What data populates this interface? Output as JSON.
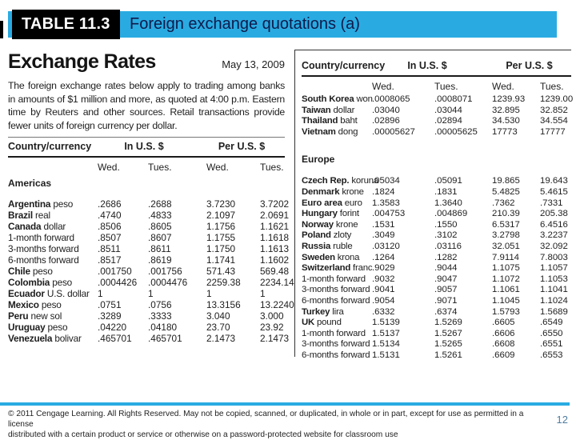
{
  "slide": {
    "table_label": "TABLE 11.3",
    "title": "Foreign exchange quotations (a)",
    "page_number": "12",
    "footer_line1": "© 2011 Cengage Learning. All Rights Reserved. May not be copied, scanned, or duplicated, in whole or in part, except for use as permitted in a license",
    "footer_line2": "distributed with a certain product or service or otherwise on a password-protected website for classroom use"
  },
  "exhibit": {
    "title": "Exchange Rates",
    "date": "May 13, 2009",
    "intro": "The foreign exchange rates below apply to trading among banks in amounts of $1 million and more, as quoted at 4:00 p.m. Eastern time by Reuters and other sources. Retail transactions provide fewer units of foreign currency per dollar."
  },
  "headers": {
    "country": "Country/currency",
    "in_usd": "In U.S. $",
    "per_usd": "Per U.S. $",
    "sub": [
      "Wed.",
      "Tues.",
      "Wed.",
      "Tues."
    ]
  },
  "left_table": {
    "sections": [
      {
        "name": "Americas",
        "rows": [
          {
            "bold": "Argentina",
            "rest": "peso",
            "values": [
              ".2686",
              ".2688",
              "3.7230",
              "3.7202"
            ]
          },
          {
            "bold": "Brazil",
            "rest": "real",
            "values": [
              ".4740",
              ".4833",
              "2.1097",
              "2.0691"
            ]
          },
          {
            "bold": "Canada",
            "rest": "dollar",
            "values": [
              ".8506",
              ".8605",
              "1.1756",
              "1.1621"
            ]
          },
          {
            "bold": "",
            "rest": "1-month forward",
            "values": [
              ".8507",
              ".8607",
              "1.1755",
              "1.1618"
            ]
          },
          {
            "bold": "",
            "rest": "3-months forward",
            "values": [
              ".8511",
              ".8611",
              "1.1750",
              "1.1613"
            ]
          },
          {
            "bold": "",
            "rest": "6-months forward",
            "values": [
              ".8517",
              ".8619",
              "1.1741",
              "1.1602"
            ]
          },
          {
            "bold": "Chile",
            "rest": "peso",
            "values": [
              ".001750",
              ".001756",
              "571.43",
              "569.48"
            ]
          },
          {
            "bold": "Colombia",
            "rest": "peso",
            "values": [
              ".0004426",
              ".0004476",
              "2259.38",
              "2234.14"
            ]
          },
          {
            "bold": "Ecuador",
            "rest": "U.S. dollar",
            "values": [
              "1",
              "1",
              "1",
              "1"
            ]
          },
          {
            "bold": "Mexico",
            "rest": "peso",
            "values": [
              ".0751",
              ".0756",
              "13.3156",
              "13.2240"
            ]
          },
          {
            "bold": "Peru",
            "rest": "new sol",
            "values": [
              ".3289",
              ".3333",
              "3.040",
              "3.000"
            ]
          },
          {
            "bold": "Uruguay",
            "rest": "peso",
            "values": [
              ".04220",
              ".04180",
              "23.70",
              "23.92"
            ]
          },
          {
            "bold": "Venezuela",
            "rest": "bolivar",
            "values": [
              ".465701",
              ".465701",
              "2.1473",
              "2.1473"
            ]
          }
        ]
      }
    ]
  },
  "right_table": {
    "sections": [
      {
        "name": "",
        "rows": [
          {
            "bold": "South Korea",
            "rest": "won",
            "values": [
              ".0008065",
              ".0008071",
              "1239.93",
              "1239.00"
            ]
          },
          {
            "bold": "Taiwan",
            "rest": "dollar",
            "values": [
              ".03040",
              ".03044",
              "32.895",
              "32.852"
            ]
          },
          {
            "bold": "Thailand",
            "rest": "baht",
            "values": [
              ".02896",
              ".02894",
              "34.530",
              "34.554"
            ]
          },
          {
            "bold": "Vietnam",
            "rest": "dong",
            "values": [
              ".00005627",
              ".00005625",
              "17773",
              "17777"
            ]
          }
        ]
      },
      {
        "name": "Europe",
        "rows": [
          {
            "bold": "Czech Rep.",
            "rest": "koruna",
            "values": [
              ".05034",
              ".05091",
              "19.865",
              "19.643"
            ]
          },
          {
            "bold": "Denmark",
            "rest": "krone",
            "values": [
              ".1824",
              ".1831",
              "5.4825",
              "5.4615"
            ]
          },
          {
            "bold": "Euro area",
            "rest": "euro",
            "values": [
              "1.3583",
              "1.3640",
              ".7362",
              ".7331"
            ]
          },
          {
            "bold": "Hungary",
            "rest": "forint",
            "values": [
              ".004753",
              ".004869",
              "210.39",
              "205.38"
            ]
          },
          {
            "bold": "Norway",
            "rest": "krone",
            "values": [
              ".1531",
              ".1550",
              "6.5317",
              "6.4516"
            ]
          },
          {
            "bold": "Poland",
            "rest": "zloty",
            "values": [
              ".3049",
              ".3102",
              "3.2798",
              "3.2237"
            ]
          },
          {
            "bold": "Russia",
            "rest": "ruble",
            "values": [
              ".03120",
              ".03116",
              "32.051",
              "32.092"
            ]
          },
          {
            "bold": "Sweden",
            "rest": "krona",
            "values": [
              ".1264",
              ".1282",
              "7.9114",
              "7.8003"
            ]
          },
          {
            "bold": "Switzerland",
            "rest": "franc",
            "values": [
              ".9029",
              ".9044",
              "1.1075",
              "1.1057"
            ]
          },
          {
            "bold": "",
            "rest": "1-month forward",
            "values": [
              ".9032",
              ".9047",
              "1.1072",
              "1.1053"
            ]
          },
          {
            "bold": "",
            "rest": "3-months forward",
            "values": [
              ".9041",
              ".9057",
              "1.1061",
              "1.1041"
            ]
          },
          {
            "bold": "",
            "rest": "6-months forward",
            "values": [
              ".9054",
              ".9071",
              "1.1045",
              "1.1024"
            ]
          },
          {
            "bold": "Turkey",
            "rest": "lira",
            "values": [
              ".6332",
              ".6374",
              "1.5793",
              "1.5689"
            ]
          },
          {
            "bold": "UK",
            "rest": "pound",
            "values": [
              "1.5139",
              "1.5269",
              ".6605",
              ".6549"
            ]
          },
          {
            "bold": "",
            "rest": "1-month forward",
            "values": [
              "1.5137",
              "1.5267",
              ".6606",
              ".6550"
            ]
          },
          {
            "bold": "",
            "rest": "3-months forward",
            "values": [
              "1.5134",
              "1.5265",
              ".6608",
              ".6551"
            ]
          },
          {
            "bold": "",
            "rest": "6-months forward",
            "values": [
              "1.5131",
              "1.5261",
              ".6609",
              ".6553"
            ]
          }
        ]
      }
    ]
  },
  "colors": {
    "accent_cyan": "#29abe2",
    "label_black": "#000000",
    "title_navy": "#0f1a4a",
    "page_number_blue": "#4e7d9f"
  }
}
